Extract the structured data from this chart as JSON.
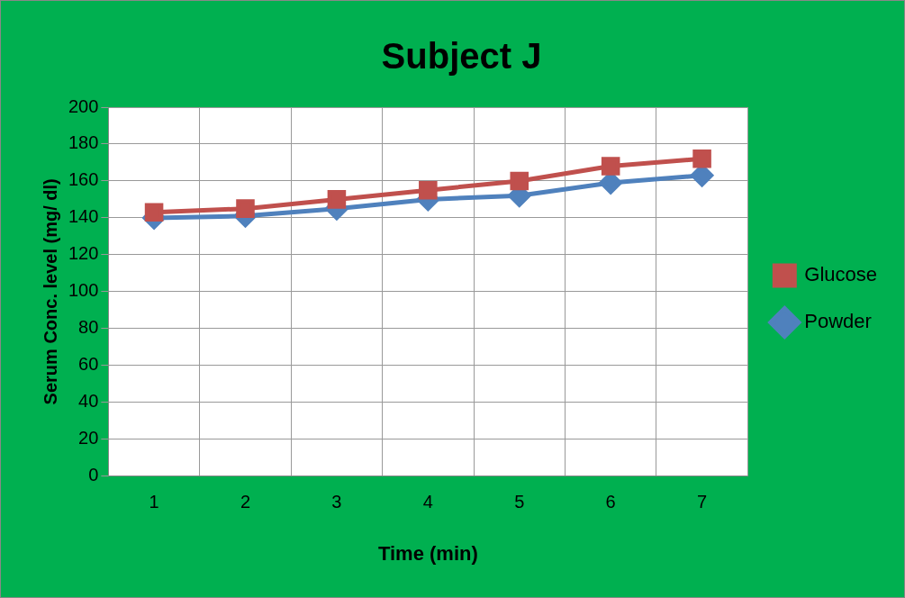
{
  "chart_data": {
    "type": "line",
    "title": "Subject J",
    "xlabel": "Time (min)",
    "ylabel": "Serum Conc. level (mg/ dl)",
    "categories": [
      "1",
      "2",
      "3",
      "4",
      "5",
      "6",
      "7"
    ],
    "series": [
      {
        "name": "Powder",
        "color": "#4f81bd",
        "marker": "diamond",
        "values": [
          140,
          141,
          145,
          150,
          152,
          159,
          163
        ]
      },
      {
        "name": "Glucose",
        "color": "#c0504d",
        "marker": "square",
        "values": [
          143,
          145,
          150,
          155,
          160,
          168,
          172
        ]
      }
    ],
    "ylim": [
      0,
      200
    ],
    "yticks": [
      0,
      20,
      40,
      60,
      80,
      100,
      120,
      140,
      160,
      180,
      200
    ],
    "grid": true,
    "legend": "right"
  }
}
